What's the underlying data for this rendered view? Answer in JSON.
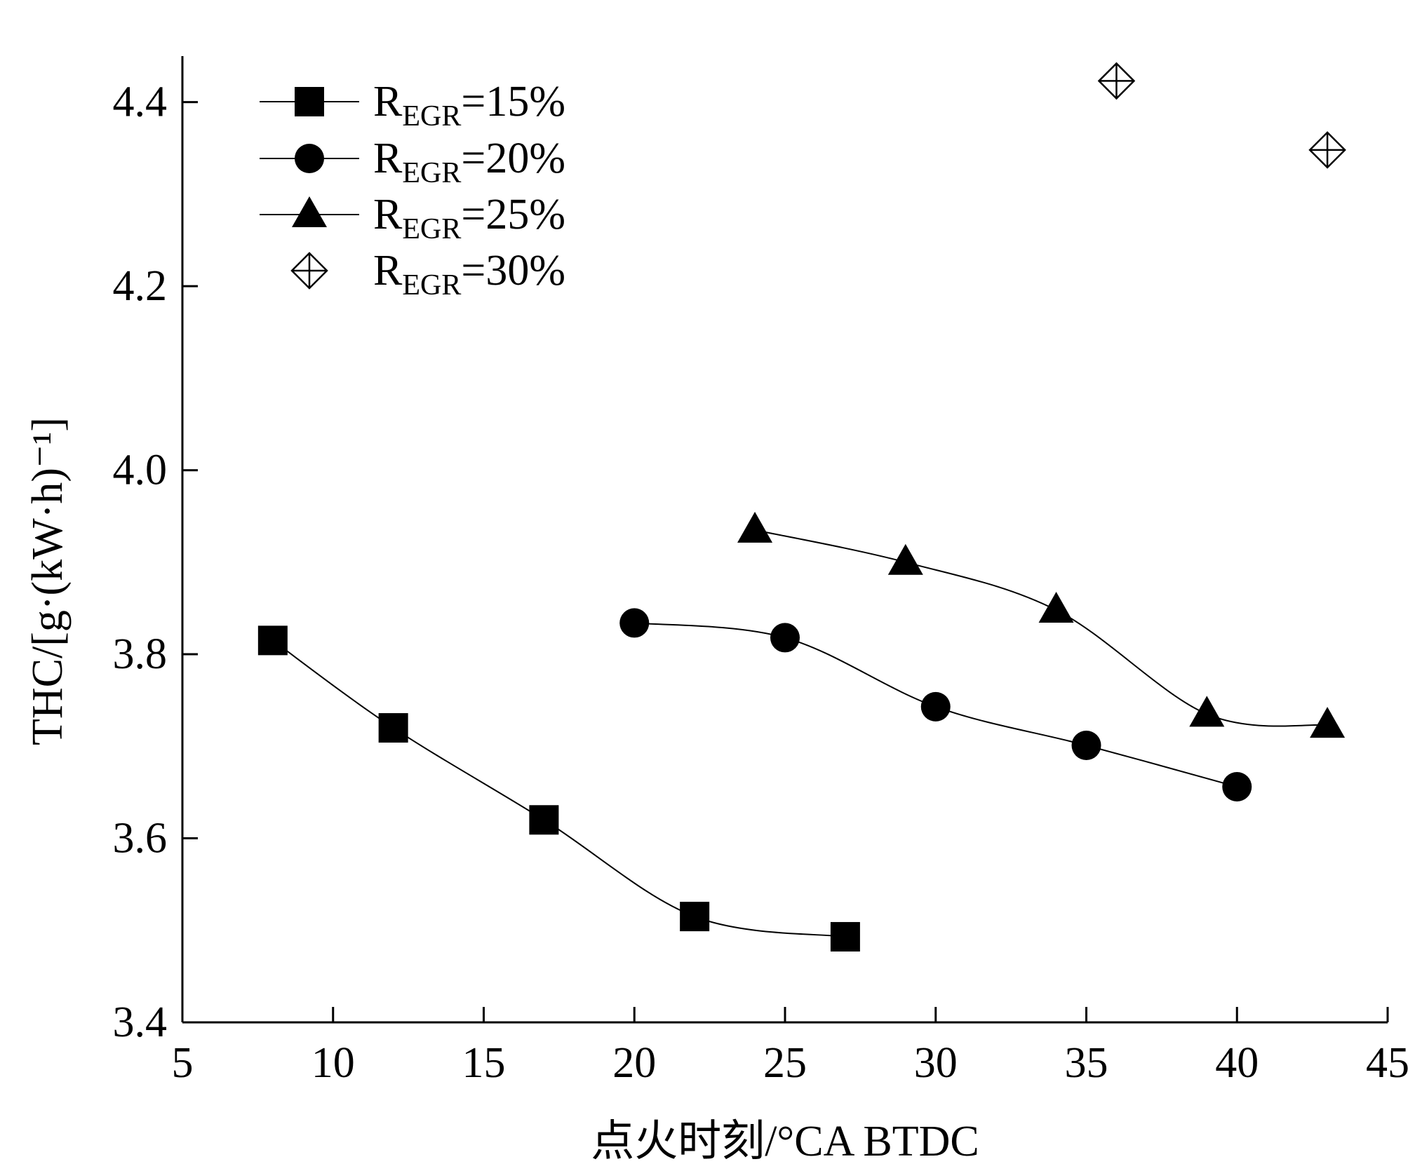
{
  "chart_data": {
    "type": "scatter",
    "xlabel": "点火时刻/°CA BTDC",
    "ylabel": "THC/[g·(kW·h)⁻¹]",
    "xlim": [
      5,
      45
    ],
    "ylim": [
      3.4,
      4.45
    ],
    "x_ticks": [
      5,
      10,
      15,
      20,
      25,
      30,
      35,
      40,
      45
    ],
    "y_ticks": [
      3.4,
      3.6,
      3.8,
      4.0,
      4.2,
      4.4
    ],
    "x_tick_labels": [
      "5",
      "10",
      "15",
      "20",
      "25",
      "30",
      "35",
      "40",
      "45"
    ],
    "y_tick_labels": [
      "3.4",
      "3.6",
      "3.8",
      "4.0",
      "4.2",
      "4.4"
    ],
    "grid": false,
    "legend_position": "top-left",
    "series": [
      {
        "name_main": "R",
        "name_sub": "EGR",
        "name_rest": "=15%",
        "marker": "square",
        "line": true,
        "x": [
          8,
          12,
          17,
          22,
          27
        ],
        "y": [
          3.815,
          3.72,
          3.62,
          3.515,
          3.493
        ]
      },
      {
        "name_main": "R",
        "name_sub": "EGR",
        "name_rest": "=20%",
        "marker": "circle",
        "line": true,
        "x": [
          20,
          25,
          30,
          35,
          40
        ],
        "y": [
          3.834,
          3.818,
          3.743,
          3.701,
          3.656
        ]
      },
      {
        "name_main": "R",
        "name_sub": "EGR",
        "name_rest": "=25%",
        "marker": "triangle",
        "line": true,
        "x": [
          24,
          29,
          34,
          39,
          43
        ],
        "y": [
          3.935,
          3.9,
          3.848,
          3.735,
          3.723
        ]
      },
      {
        "name_main": "R",
        "name_sub": "EGR",
        "name_rest": "=30%",
        "marker": "diamond-cross",
        "line": false,
        "x": [
          36,
          43
        ],
        "y": [
          4.423,
          4.348
        ]
      }
    ]
  }
}
